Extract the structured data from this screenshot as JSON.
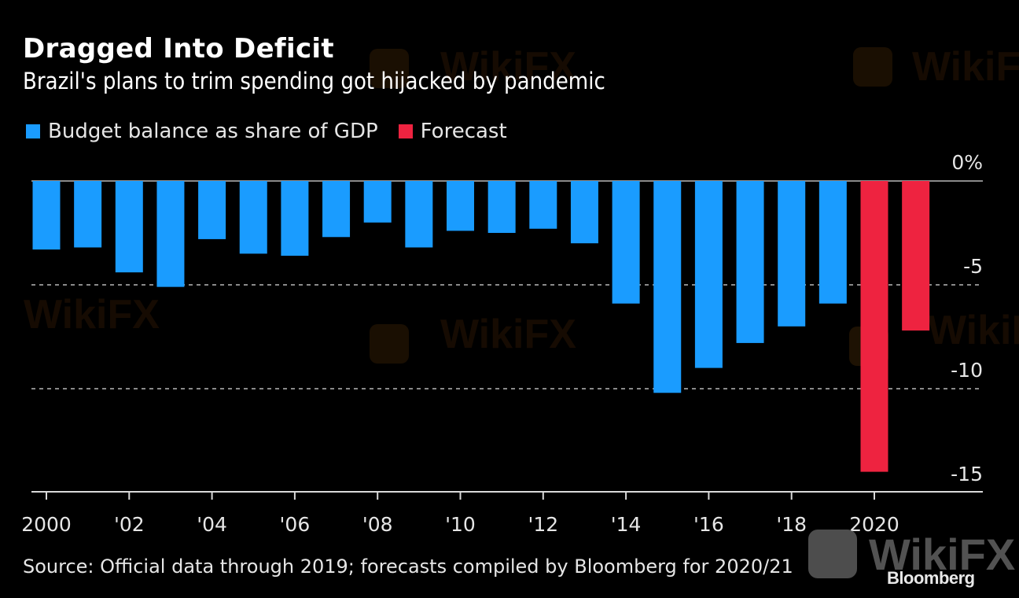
{
  "header": {
    "title": "Dragged Into Deficit",
    "subtitle": "Brazil's plans to trim spending got hijacked by pandemic"
  },
  "legend": [
    {
      "label": "Budget balance as share of GDP",
      "color": "#1a9cff"
    },
    {
      "label": "Forecast",
      "color": "#ee2340"
    }
  ],
  "footer": {
    "source": "Source: Official data through 2019; forecasts compiled by Bloomberg for 2020/21",
    "brand": "Bloomberg",
    "watermark": "WikiFX"
  },
  "chart_data": {
    "type": "bar",
    "title": "Dragged Into Deficit",
    "subtitle": "Brazil's plans to trim spending got hijacked by pandemic",
    "xlabel": "",
    "ylabel": "Budget balance as share of GDP (%)",
    "categories": [
      "2000",
      "2001",
      "2002",
      "2003",
      "2004",
      "2005",
      "2006",
      "2007",
      "2008",
      "2009",
      "2010",
      "2011",
      "2012",
      "2013",
      "2014",
      "2015",
      "2016",
      "2017",
      "2018",
      "2019",
      "2020",
      "2021"
    ],
    "series": [
      {
        "name": "Budget balance as share of GDP",
        "color": "#1a9cff",
        "values": [
          -3.3,
          -3.2,
          -4.4,
          -5.1,
          -2.8,
          -3.5,
          -3.6,
          -2.7,
          -2.0,
          -3.2,
          -2.4,
          -2.5,
          -2.3,
          -3.0,
          -5.9,
          -10.2,
          -9.0,
          -7.8,
          -7.0,
          -5.9,
          null,
          null
        ]
      },
      {
        "name": "Forecast",
        "color": "#ee2340",
        "values": [
          null,
          null,
          null,
          null,
          null,
          null,
          null,
          null,
          null,
          null,
          null,
          null,
          null,
          null,
          null,
          null,
          null,
          null,
          null,
          null,
          -14.0,
          -7.2
        ]
      }
    ],
    "x_tick_labels": [
      {
        "year": "2000",
        "label": "2000"
      },
      {
        "year": "2002",
        "label": "'02"
      },
      {
        "year": "2004",
        "label": "'04"
      },
      {
        "year": "2006",
        "label": "'06"
      },
      {
        "year": "2008",
        "label": "'08"
      },
      {
        "year": "2010",
        "label": "'10"
      },
      {
        "year": "2012",
        "label": "'12"
      },
      {
        "year": "2014",
        "label": "'14"
      },
      {
        "year": "2016",
        "label": "'16"
      },
      {
        "year": "2018",
        "label": "'18"
      },
      {
        "year": "2020",
        "label": "2020"
      }
    ],
    "y_ticks": [
      {
        "value": 0,
        "label": "0%"
      },
      {
        "value": -5,
        "label": "-5"
      },
      {
        "value": -10,
        "label": "-10"
      },
      {
        "value": -15,
        "label": "-15"
      }
    ],
    "ylim": [
      -15,
      0
    ],
    "grid": true,
    "legend_position": "top-left"
  }
}
